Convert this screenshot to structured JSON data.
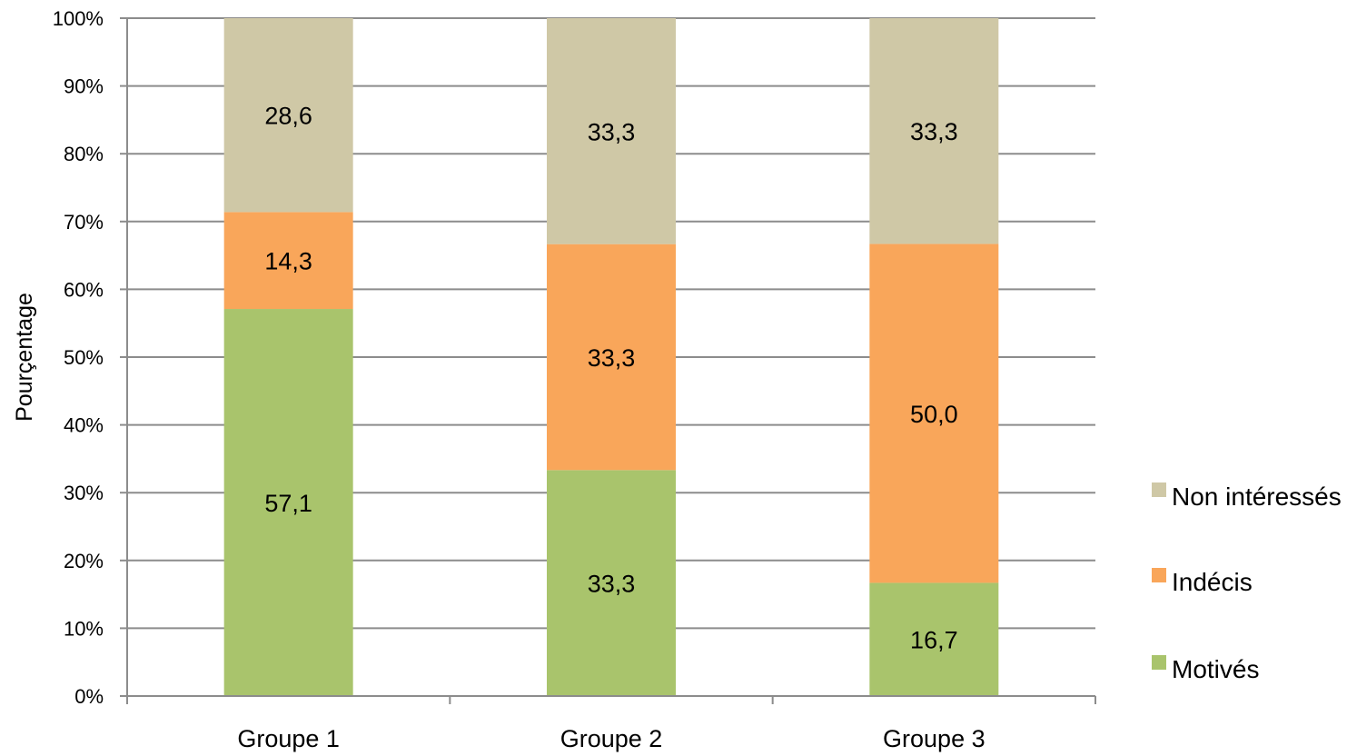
{
  "chart_data": {
    "type": "bar",
    "stacked": true,
    "percent_stacked": true,
    "categories": [
      "Groupe 1",
      "Groupe 2",
      "Groupe 3"
    ],
    "series": [
      {
        "name": "Motivés",
        "values": [
          57.1,
          33.3,
          16.7
        ],
        "labels": [
          "57,1",
          "33,3",
          "16,7"
        ],
        "color": "#a9c46c"
      },
      {
        "name": "Indécis",
        "values": [
          14.3,
          33.3,
          50.0
        ],
        "labels": [
          "14,3",
          "33,3",
          "50,0"
        ],
        "color": "#f9a65a"
      },
      {
        "name": "Non intéressés",
        "values": [
          28.6,
          33.3,
          33.3
        ],
        "labels": [
          "28,6",
          "33,3",
          "33,3"
        ],
        "color": "#cfc8a6"
      }
    ],
    "title": "",
    "xlabel": "",
    "ylabel": "Pourçentage",
    "ylim": [
      0,
      100
    ],
    "yticks": [
      "0%",
      "10%",
      "20%",
      "30%",
      "40%",
      "50%",
      "60%",
      "70%",
      "80%",
      "90%",
      "100%"
    ],
    "grid": true,
    "legend_position": "right",
    "legend_order": [
      "Non intéressés",
      "Indécis",
      "Motivés"
    ]
  }
}
